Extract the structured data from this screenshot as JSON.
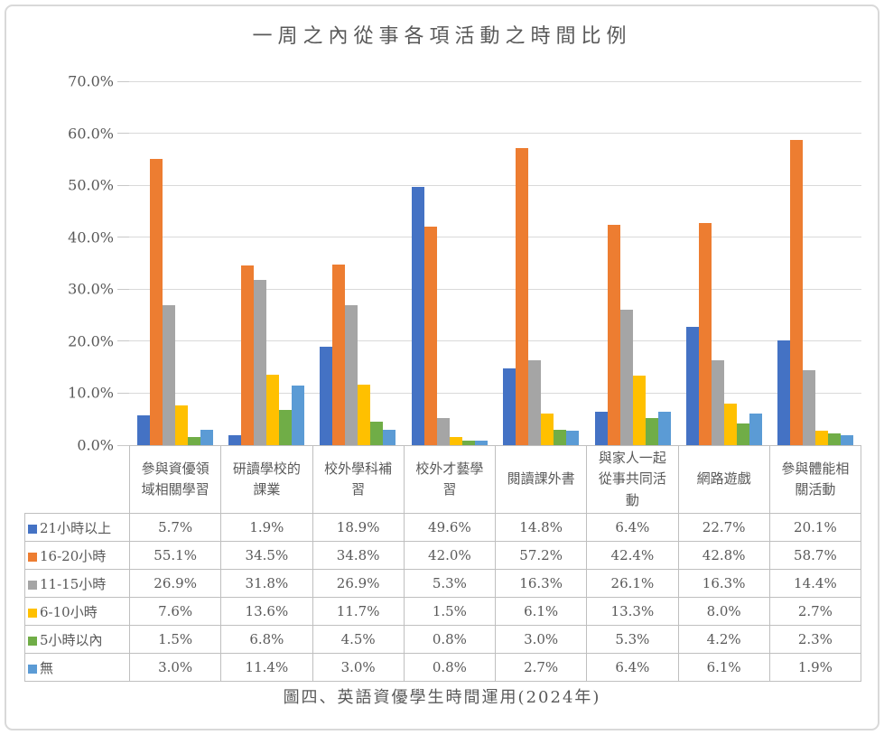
{
  "figure": {
    "title": "一周之內從事各項活動之時間比例",
    "caption": "圖四、英語資優學生時間運用(2024年)"
  },
  "colors": {
    "text": "#595959",
    "gridline": "#d9d9d9",
    "axis_tick": "#c8c8c8",
    "table_border": "#bfbfbf",
    "frame_border": "#d9d9d9"
  },
  "chart_data": {
    "type": "bar",
    "title": "一周之內從事各項活動之時間比例",
    "caption": "圖四、英語資優學生時間運用(2024年)",
    "categories": [
      "參與資優領域相關學習",
      "研讀學校的課業",
      "校外學科補習",
      "校外才藝學習",
      "閱讀課外書",
      "與家人一起從事共同活動",
      "網路遊戲",
      "參與體能相關活動"
    ],
    "series": [
      {
        "name": "21小時以上",
        "color": "#4472C4",
        "values": [
          5.7,
          1.9,
          18.9,
          49.6,
          14.8,
          6.4,
          22.7,
          20.1
        ]
      },
      {
        "name": "16-20小時",
        "color": "#ED7D31",
        "values": [
          55.1,
          34.5,
          34.8,
          42.0,
          57.2,
          42.4,
          42.8,
          58.7
        ]
      },
      {
        "name": "11-15小時",
        "color": "#A5A5A5",
        "values": [
          26.9,
          31.8,
          26.9,
          5.3,
          16.3,
          26.1,
          16.3,
          14.4
        ]
      },
      {
        "name": "6-10小時",
        "color": "#FFC000",
        "values": [
          7.6,
          13.6,
          11.7,
          1.5,
          6.1,
          13.3,
          8.0,
          2.7
        ]
      },
      {
        "name": "5小時以內",
        "color": "#70AD47",
        "values": [
          1.5,
          6.8,
          4.5,
          0.8,
          3.0,
          5.3,
          4.2,
          2.3
        ]
      },
      {
        "name": "無",
        "color": "#5B9BD5",
        "values": [
          3.0,
          11.4,
          3.0,
          0.8,
          2.7,
          6.4,
          6.1,
          1.9
        ]
      }
    ],
    "ylim": [
      0,
      70
    ],
    "ytick_values": [
      0,
      10,
      20,
      30,
      40,
      50,
      60,
      70
    ],
    "ytick_labels": [
      "0.0%",
      "10.0%",
      "20.0%",
      "30.0%",
      "40.0%",
      "50.0%",
      "60.0%",
      "70.0%"
    ],
    "value_suffix": "%",
    "grid": true,
    "legend_position": "table-row-headers"
  }
}
